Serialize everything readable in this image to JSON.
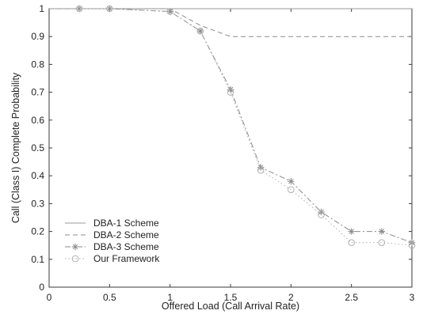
{
  "chart_data": {
    "type": "line",
    "title": "",
    "xlabel": "Offered Load (Call Arrival Rate)",
    "ylabel": "Call (Class I) Complete Probability",
    "xlim": [
      0,
      3
    ],
    "ylim": [
      0,
      1
    ],
    "x_ticks": [
      "0",
      "0.5",
      "1",
      "1.5",
      "2",
      "2.5",
      "3"
    ],
    "y_ticks": [
      "0",
      "0.1",
      "0.2",
      "0.3",
      "0.4",
      "0.5",
      "0.6",
      "0.7",
      "0.8",
      "0.9",
      "1"
    ],
    "grid": false,
    "legend_position": "bottom-left",
    "series": [
      {
        "name": "DBA-1 Scheme",
        "color": "#9a9a9a",
        "line_style": "solid",
        "marker": "none",
        "x": [
          0,
          0.25,
          0.5,
          1.0,
          1.25,
          1.5,
          1.75,
          2.0,
          2.25,
          2.5,
          2.75,
          3.0
        ],
        "y": [
          1.0,
          1.0,
          1.0,
          1.0,
          1.0,
          1.0,
          1.0,
          1.0,
          1.0,
          1.0,
          1.0,
          1.0
        ]
      },
      {
        "name": "DBA-2 Scheme",
        "color": "#8c8c8c",
        "line_style": "dashed",
        "marker": "none",
        "x": [
          0,
          0.25,
          0.5,
          1.0,
          1.25,
          1.5,
          1.75,
          2.0,
          2.25,
          2.5,
          2.75,
          3.0
        ],
        "y": [
          1.0,
          1.0,
          1.0,
          1.0,
          0.94,
          0.9,
          0.9,
          0.9,
          0.9,
          0.9,
          0.9,
          0.9
        ]
      },
      {
        "name": "DBA-3 Scheme",
        "color": "#8a8a8a",
        "line_style": "dash-dot",
        "marker": "star",
        "x": [
          0.25,
          0.5,
          1.0,
          1.25,
          1.5,
          1.75,
          2.0,
          2.25,
          2.5,
          2.75,
          3.0
        ],
        "y": [
          1.0,
          1.0,
          0.99,
          0.92,
          0.71,
          0.43,
          0.38,
          0.27,
          0.2,
          0.2,
          0.16
        ]
      },
      {
        "name": "Our Framework",
        "color": "#b0b0b0",
        "line_style": "dotted",
        "marker": "circle",
        "x": [
          0.25,
          0.5,
          1.0,
          1.25,
          1.5,
          1.75,
          2.0,
          2.25,
          2.5,
          2.75,
          3.0
        ],
        "y": [
          1.0,
          1.0,
          0.99,
          0.92,
          0.7,
          0.42,
          0.35,
          0.26,
          0.16,
          0.16,
          0.15
        ]
      }
    ]
  }
}
